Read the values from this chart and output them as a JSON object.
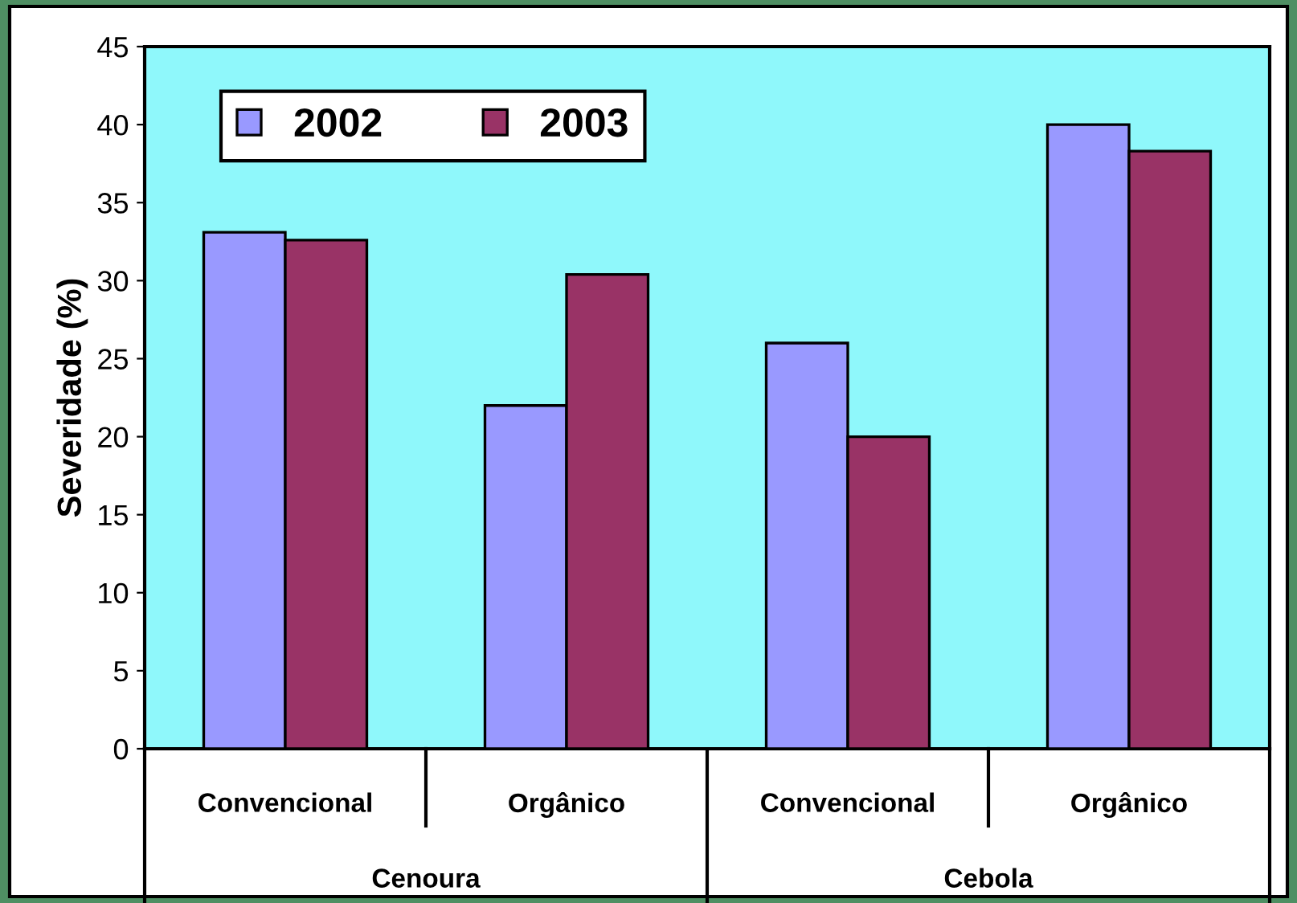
{
  "chart_data": {
    "type": "bar",
    "ylabel": "Severidade (%)",
    "categories": [
      "Convencional",
      "Orgânico",
      "Convencional",
      "Orgânico"
    ],
    "series": [
      {
        "name": "2002",
        "color": "#9999ff",
        "values": [
          33.1,
          22.0,
          26.0,
          40.0
        ]
      },
      {
        "name": "2003",
        "color": "#993366",
        "values": [
          32.6,
          30.4,
          20.0,
          38.3
        ]
      }
    ],
    "annotations": [
      "Cenoura",
      "Cebola"
    ],
    "ylim": [
      0,
      45
    ],
    "yticks": [
      0,
      5,
      10,
      15,
      20,
      25,
      30,
      35,
      40,
      45
    ],
    "grid": false,
    "legend": "top left"
  }
}
